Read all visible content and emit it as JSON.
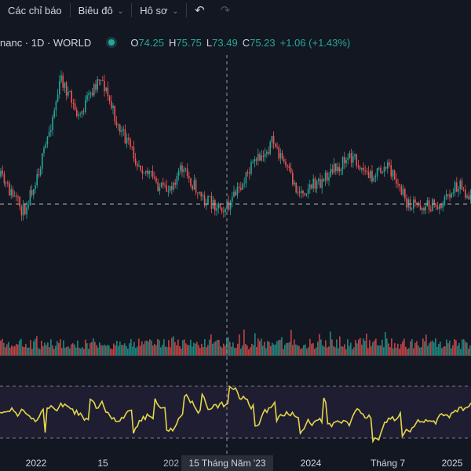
{
  "toolbar": {
    "indicators_label": "Các chỉ báo",
    "chart_label": "Biêu đô",
    "profile_label": "Hô sơ"
  },
  "legend": {
    "symbol": "nanc · 1D · WORLD",
    "o_key": "O",
    "o_val": "74.25",
    "h_key": "H",
    "h_val": "75.75",
    "l_key": "L",
    "l_val": "73.49",
    "c_key": "C",
    "c_val": "75.23",
    "change": "+1.06 (+1.43%)"
  },
  "xaxis": {
    "labels": [
      "2022",
      "15",
      "202",
      "2024",
      "Tháng 7",
      "2025"
    ],
    "crosshair_label": "15 Tháng Năm '23"
  },
  "colors": {
    "background": "#131722",
    "up": "#26a69a",
    "down": "#ef5350",
    "oscillator": "#e3d64b",
    "oscillator_band": "#2a2340"
  }
}
